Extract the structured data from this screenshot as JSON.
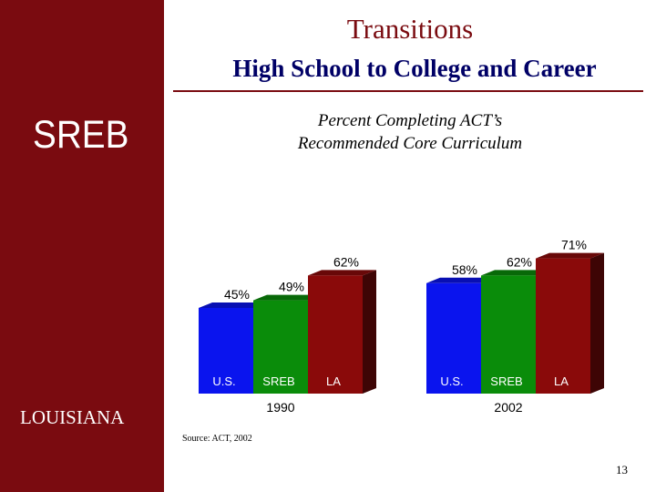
{
  "header": {
    "title": "Transitions",
    "subtitle": "High School to College and Career"
  },
  "sidebar": {
    "logo_text": "SREB",
    "state_label": "LOUISIANA"
  },
  "footer": {
    "source": "Source: ACT, 2002",
    "page_number": "13"
  },
  "colors": {
    "sidebar": "#7a0b10",
    "subtitle": "#000066",
    "us": "#0a14ee",
    "sreb": "#0a8c0a",
    "la": "#8a0a0a"
  },
  "chart_data": {
    "type": "bar",
    "title_lines": [
      "Percent Completing ACT’s",
      "Recommended Core Curriculum"
    ],
    "unit": "%",
    "groups": [
      {
        "label": "1990",
        "bars": [
          {
            "category": "U.S.",
            "value": 45,
            "label": "45%"
          },
          {
            "category": "SREB",
            "value": 49,
            "label": "49%"
          },
          {
            "category": "LA",
            "value": 62,
            "label": "62%"
          }
        ]
      },
      {
        "label": "2002",
        "bars": [
          {
            "category": "U.S.",
            "value": 58,
            "label": "58%"
          },
          {
            "category": "SREB",
            "value": 62,
            "label": "62%"
          },
          {
            "category": "LA",
            "value": 71,
            "label": "71%"
          }
        ]
      }
    ]
  }
}
